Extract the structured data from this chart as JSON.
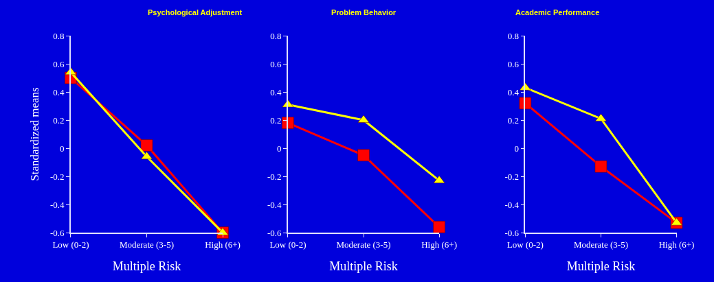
{
  "chart_data": [
    {
      "type": "line",
      "title": "Psychological Adjustment",
      "xlabel": "Multiple Risk",
      "ylabel": "Standardized means",
      "categories": [
        "Low (0-2)",
        "Moderate (3-5)",
        "High (6+)"
      ],
      "ylim": [
        -0.6,
        0.8
      ],
      "yticks": [
        -0.6,
        -0.4,
        -0.2,
        0,
        0.2,
        0.4,
        0.6,
        0.8
      ],
      "series": [
        {
          "color": "#ff0000",
          "marker": "square",
          "values": [
            0.5,
            0.02,
            -0.6
          ]
        },
        {
          "color": "#ffff00",
          "marker": "triangle",
          "values": [
            0.54,
            -0.06,
            -0.6
          ]
        }
      ]
    },
    {
      "type": "line",
      "title": "Problem Behavior",
      "xlabel": "Multiple Risk",
      "categories": [
        "Low (0-2)",
        "Moderate (3-5)",
        "High (6+)"
      ],
      "ylim": [
        -0.6,
        0.8
      ],
      "yticks": [
        -0.6,
        -0.4,
        -0.2,
        0,
        0.2,
        0.4,
        0.6,
        0.8
      ],
      "series": [
        {
          "color": "#ff0000",
          "marker": "square",
          "values": [
            0.18,
            -0.05,
            -0.56
          ]
        },
        {
          "color": "#ffff00",
          "marker": "triangle",
          "values": [
            0.31,
            0.2,
            -0.23
          ]
        }
      ]
    },
    {
      "type": "line",
      "title": "Academic Performance",
      "xlabel": "Multiple Risk",
      "categories": [
        "Low (0-2)",
        "Moderate (3-5)",
        "High (6+)"
      ],
      "ylim": [
        -0.6,
        0.8
      ],
      "yticks": [
        -0.6,
        -0.4,
        -0.2,
        0,
        0.2,
        0.4,
        0.6,
        0.8
      ],
      "series": [
        {
          "color": "#ff0000",
          "marker": "square",
          "values": [
            0.32,
            -0.13,
            -0.53
          ]
        },
        {
          "color": "#ffff00",
          "marker": "triangle",
          "values": [
            0.43,
            0.21,
            -0.53
          ]
        }
      ]
    }
  ]
}
